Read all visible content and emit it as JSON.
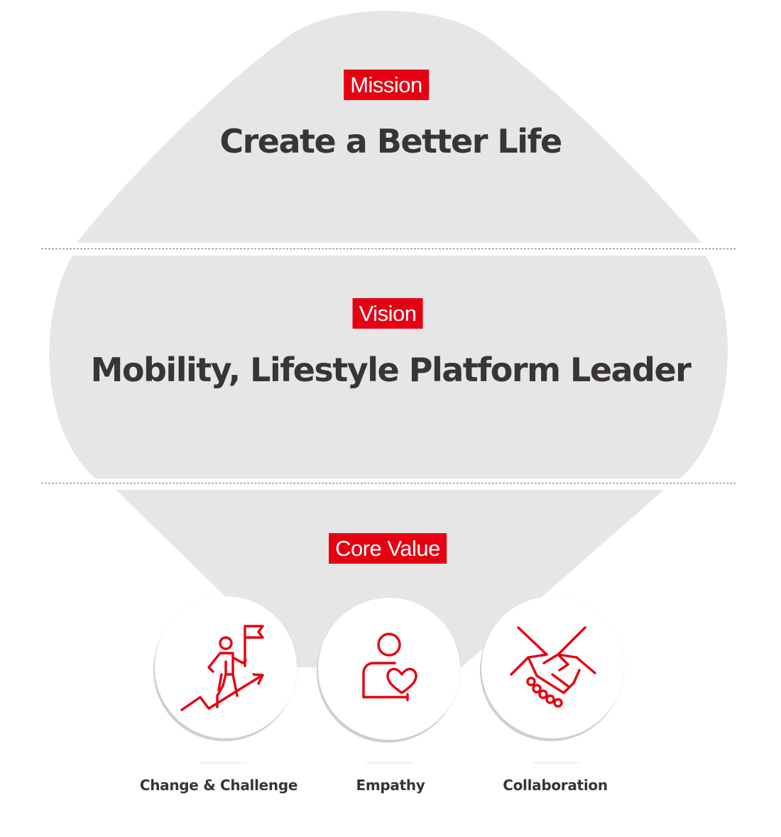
{
  "colors": {
    "accent": "#e60012",
    "shape": "#e6e6e7",
    "text": "#3a3535"
  },
  "mission": {
    "tag": "Mission",
    "statement": "Create a Better Life"
  },
  "vision": {
    "tag": "Vision",
    "statement": "Mobility, Lifestyle Platform Leader"
  },
  "core_value": {
    "tag": "Core Value",
    "items": [
      {
        "label": "Change & Challenge",
        "icon": "climbing-flag-icon"
      },
      {
        "label": "Empathy",
        "icon": "person-heart-icon"
      },
      {
        "label": "Collaboration",
        "icon": "handshake-icon"
      }
    ]
  }
}
